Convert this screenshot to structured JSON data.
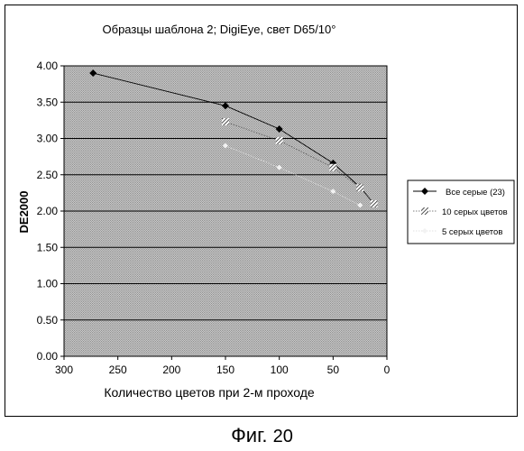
{
  "chart_data": {
    "type": "line",
    "title": "Образцы шаблона 2; DigiEye, свет D65/10°",
    "xlabel": "Количество цветов при 2-м проходе",
    "ylabel": "DE2000",
    "xlim": [
      300,
      0
    ],
    "ylim": [
      0,
      4
    ],
    "x_reversed": true,
    "x_ticks": [
      "300",
      "250",
      "200",
      "150",
      "100",
      "50",
      "0"
    ],
    "x_tick_values": [
      300,
      250,
      200,
      150,
      100,
      50,
      0
    ],
    "y_ticks": [
      "0.00",
      "0.50",
      "1.00",
      "1.50",
      "2.00",
      "2.50",
      "3.00",
      "3.50",
      "4.00"
    ],
    "y_tick_values": [
      0,
      0.5,
      1,
      1.5,
      2,
      2.5,
      3,
      3.5,
      4
    ],
    "grid": true,
    "legend_position": "right",
    "series": [
      {
        "name": "Все серые (23)",
        "marker": "diamond",
        "color": "#000000",
        "points": [
          [
            273,
            3.9
          ],
          [
            150,
            3.45
          ],
          [
            100,
            3.13
          ],
          [
            50,
            2.66
          ],
          [
            25,
            2.33
          ],
          [
            12,
            2.1
          ]
        ]
      },
      {
        "name": "10 серых цветов",
        "marker": "hatched",
        "color": "#444444",
        "points": [
          [
            150,
            3.23
          ],
          [
            100,
            2.97
          ],
          [
            50,
            2.6
          ],
          [
            25,
            2.32
          ],
          [
            12,
            2.1
          ]
        ]
      },
      {
        "name": "5 серых цветов",
        "marker": "light",
        "color": "#f2f2f2",
        "points": [
          [
            150,
            2.9
          ],
          [
            100,
            2.6
          ],
          [
            50,
            2.27
          ],
          [
            25,
            2.08
          ]
        ]
      }
    ]
  },
  "figure": {
    "caption_label": "Фиг.",
    "caption_number": "20"
  }
}
